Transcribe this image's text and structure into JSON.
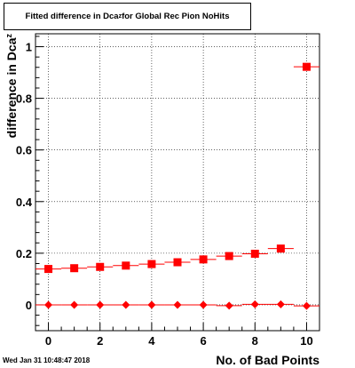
{
  "header": {
    "title_main": "Fitted difference in Dca",
    "title_sub": "z",
    "title_rest": " for Global Rec Pion NoHits"
  },
  "footer": {
    "timestamp": "Wed Jan 31 10:48:47 2018"
  },
  "chart_data": {
    "type": "scatter",
    "title": "Fitted difference in Dca_z for Global Rec Pion NoHits",
    "xlabel": "No. of Bad Points",
    "ylabel": "difference in Dca_z",
    "xlim": [
      -0.5,
      10.5
    ],
    "ylim": [
      -0.1,
      1.05
    ],
    "x_ticks": [
      "0",
      "2",
      "4",
      "6",
      "8",
      "10"
    ],
    "y_ticks": [
      "0",
      "0.2",
      "0.4",
      "0.6",
      "0.8",
      "1"
    ],
    "grid": true,
    "series": [
      {
        "marker": "square",
        "color": "#ff0000",
        "points": [
          {
            "x": 0,
            "y": 0.139,
            "err": 0.008
          },
          {
            "x": 1,
            "y": 0.142,
            "err": 0.006
          },
          {
            "x": 2,
            "y": 0.147,
            "err": 0.006
          },
          {
            "x": 3,
            "y": 0.152,
            "err": 0.006
          },
          {
            "x": 4,
            "y": 0.158,
            "err": 0.006
          },
          {
            "x": 5,
            "y": 0.165,
            "err": 0.007
          },
          {
            "x": 6,
            "y": 0.176,
            "err": 0.007
          },
          {
            "x": 7,
            "y": 0.189,
            "err": 0.007
          },
          {
            "x": 8,
            "y": 0.198,
            "err": 0.007
          },
          {
            "x": 9,
            "y": 0.218,
            "err": 0.008
          },
          {
            "x": 10,
            "y": 0.922,
            "err": 0.008
          }
        ]
      },
      {
        "marker": "diamond",
        "color": "#ff0000",
        "points": [
          {
            "x": 0,
            "y": 0.0,
            "err": 0.003
          },
          {
            "x": 1,
            "y": 0.0,
            "err": 0.003
          },
          {
            "x": 2,
            "y": 0.0,
            "err": 0.003
          },
          {
            "x": 3,
            "y": 0.0,
            "err": 0.003
          },
          {
            "x": 4,
            "y": 0.0,
            "err": 0.003
          },
          {
            "x": 5,
            "y": 0.0,
            "err": 0.003
          },
          {
            "x": 6,
            "y": 0.0,
            "err": 0.003
          },
          {
            "x": 7,
            "y": -0.003,
            "err": 0.003
          },
          {
            "x": 8,
            "y": 0.002,
            "err": 0.003
          },
          {
            "x": 9,
            "y": 0.002,
            "err": 0.004
          },
          {
            "x": 10,
            "y": -0.004,
            "err": 0.004
          }
        ]
      }
    ]
  }
}
